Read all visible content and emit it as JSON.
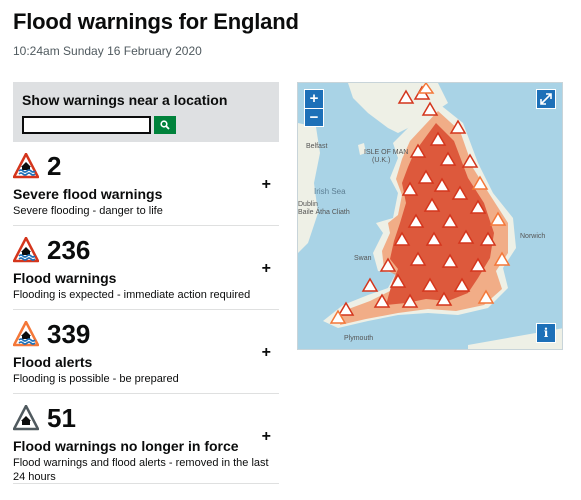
{
  "page": {
    "title": "Flood warnings for England",
    "timestamp": "10:24am Sunday 16 February 2020"
  },
  "search": {
    "title": "Show warnings near a location",
    "input_value": "",
    "button_icon": "search-icon"
  },
  "warnings": [
    {
      "count": "2",
      "heading": "Severe flood warnings",
      "description": "Severe flooding - danger to life",
      "icon": "severe-warning-icon",
      "color": "#d4351c"
    },
    {
      "count": "236",
      "heading": "Flood warnings",
      "description": "Flooding is expected - immediate action required",
      "icon": "flood-warning-icon",
      "color": "#d4351c"
    },
    {
      "count": "339",
      "heading": "Flood alerts",
      "description": "Flooding is possible - be prepared",
      "icon": "flood-alert-icon",
      "color": "#f47738"
    },
    {
      "count": "51",
      "heading": "Flood warnings no longer in force",
      "description": "Flood warnings and flood alerts - removed in the last 24 hours",
      "icon": "warning-removed-icon",
      "color": "#505a5f"
    }
  ],
  "expand_label": "+",
  "map": {
    "zoom_in": "+",
    "zoom_out": "−",
    "info": "i",
    "labels": {
      "isle_of_man": "ISLE OF MAN",
      "isle_of_man_sub": "(U.K.)",
      "belfast": "Belfast",
      "irish_sea": "Irish Sea",
      "dublin": "Dublin",
      "dublin_sub": "Baile Átha Cliath",
      "norwich": "Norwich",
      "plymouth": "Plymouth",
      "swansea": "Swan"
    },
    "colors": {
      "sea": "#a9d3e6",
      "land": "#eef0e6",
      "warning": "#d4351c",
      "alert": "#f47738"
    }
  }
}
